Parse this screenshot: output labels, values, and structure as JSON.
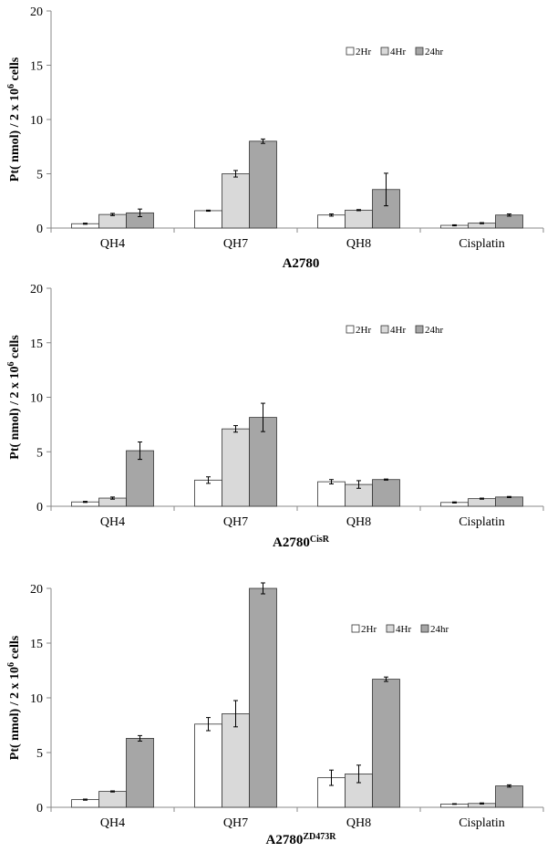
{
  "chart_data": [
    {
      "type": "bar",
      "title": "A2780",
      "title_sup": "",
      "xlabel": "A2780",
      "ylabel": "Pt( nmol) / 2 x 10",
      "ylabel_sup": "6",
      "ylabel_suffix": " cells",
      "categories": [
        "QH4",
        "QH7",
        "QH8",
        "Cisplatin"
      ],
      "ylim": [
        0,
        20
      ],
      "yticks": [
        0,
        5,
        10,
        15,
        20
      ],
      "legend_position": "top-right",
      "series": [
        {
          "name": "2Hr",
          "color": "#ffffff",
          "values": [
            0.4,
            1.6,
            1.2,
            0.25
          ],
          "errors": [
            0.05,
            0.05,
            0.1,
            0.05
          ]
        },
        {
          "name": "4Hr",
          "color": "#d9d9d9",
          "values": [
            1.25,
            5.0,
            1.65,
            0.45
          ],
          "errors": [
            0.1,
            0.3,
            0.05,
            0.05
          ]
        },
        {
          "name": "24hr",
          "color": "#a6a6a6",
          "values": [
            1.4,
            8.0,
            3.55,
            1.2
          ],
          "errors": [
            0.35,
            0.2,
            1.5,
            0.1
          ]
        }
      ]
    },
    {
      "type": "bar",
      "title": "A2780",
      "title_sup": "CisR",
      "xlabel": "A2780CisR",
      "ylabel": "Pt( nmol) / 2 x 10",
      "ylabel_sup": "6",
      "ylabel_suffix": " cells",
      "categories": [
        "QH4",
        "QH7",
        "QH8",
        "Cisplatin"
      ],
      "ylim": [
        0,
        20
      ],
      "yticks": [
        0,
        5,
        10,
        15,
        20
      ],
      "legend_position": "top-right",
      "series": [
        {
          "name": "2Hr",
          "color": "#ffffff",
          "values": [
            0.4,
            2.4,
            2.25,
            0.35
          ],
          "errors": [
            0.05,
            0.3,
            0.2,
            0.05
          ]
        },
        {
          "name": "4Hr",
          "color": "#d9d9d9",
          "values": [
            0.75,
            7.1,
            2.0,
            0.7
          ],
          "errors": [
            0.1,
            0.3,
            0.35,
            0.05
          ]
        },
        {
          "name": "24hr",
          "color": "#a6a6a6",
          "values": [
            5.1,
            8.15,
            2.45,
            0.85
          ],
          "errors": [
            0.8,
            1.3,
            0.05,
            0.05
          ]
        }
      ]
    },
    {
      "type": "bar",
      "title": "A2780",
      "title_sup": "ZD473R",
      "xlabel": "A2780ZD473R",
      "ylabel": "Pt( nmol) / 2 x 10",
      "ylabel_sup": "6",
      "ylabel_suffix": " cells",
      "categories": [
        "QH4",
        "QH7",
        "QH8",
        "Cisplatin"
      ],
      "ylim": [
        0,
        20
      ],
      "yticks": [
        0,
        5,
        10,
        15,
        20
      ],
      "legend_position": "top-right",
      "series": [
        {
          "name": "2Hr",
          "color": "#ffffff",
          "values": [
            0.7,
            7.6,
            2.7,
            0.3
          ],
          "errors": [
            0.05,
            0.6,
            0.7,
            0.03
          ]
        },
        {
          "name": "4Hr",
          "color": "#d9d9d9",
          "values": [
            1.45,
            8.55,
            3.05,
            0.35
          ],
          "errors": [
            0.05,
            1.2,
            0.8,
            0.05
          ]
        },
        {
          "name": "24hr",
          "color": "#a6a6a6",
          "values": [
            6.3,
            20.0,
            11.7,
            1.95
          ],
          "errors": [
            0.25,
            0.5,
            0.2,
            0.1
          ]
        }
      ]
    }
  ]
}
